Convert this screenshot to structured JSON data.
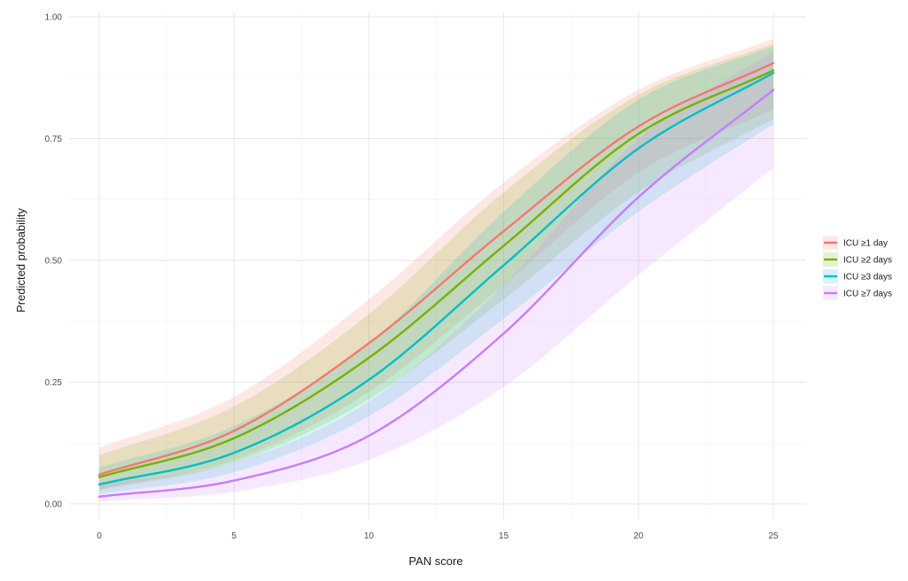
{
  "chart_data": {
    "type": "line",
    "xlabel": "PAN score",
    "ylabel": "Predicted probability",
    "xlim": [
      0,
      25
    ],
    "ylim": [
      0,
      1
    ],
    "x_ticks": [
      "0",
      "5",
      "10",
      "15",
      "20",
      "25"
    ],
    "y_ticks": [
      "0.00",
      "0.25",
      "0.50",
      "0.75",
      "1.00"
    ],
    "grid": true,
    "legend_position": "right",
    "x": [
      0,
      5,
      10,
      15,
      20,
      25
    ],
    "series": [
      {
        "name": "ICU ≥1 day",
        "color": "#F8766D",
        "values": [
          0.06,
          0.15,
          0.33,
          0.56,
          0.775,
          0.905
        ],
        "lower": [
          0.03,
          0.09,
          0.23,
          0.45,
          0.68,
          0.81
        ],
        "upper": [
          0.115,
          0.22,
          0.42,
          0.66,
          0.85,
          0.955
        ]
      },
      {
        "name": "ICU ≥2 days",
        "color": "#7CAE00",
        "values": [
          0.055,
          0.135,
          0.3,
          0.53,
          0.76,
          0.89
        ],
        "lower": [
          0.028,
          0.085,
          0.215,
          0.42,
          0.64,
          0.79
        ],
        "upper": [
          0.1,
          0.2,
          0.39,
          0.64,
          0.84,
          0.945
        ]
      },
      {
        "name": "ICU ≥3 days",
        "color": "#00BFC4",
        "values": [
          0.04,
          0.105,
          0.255,
          0.49,
          0.73,
          0.885
        ],
        "lower": [
          0.02,
          0.065,
          0.18,
          0.38,
          0.6,
          0.78
        ],
        "upper": [
          0.075,
          0.16,
          0.33,
          0.6,
          0.83,
          0.94
        ]
      },
      {
        "name": "ICU ≥7 days",
        "color": "#C77CFF",
        "values": [
          0.015,
          0.048,
          0.14,
          0.35,
          0.63,
          0.85
        ],
        "lower": [
          0.005,
          0.025,
          0.09,
          0.24,
          0.47,
          0.69
        ],
        "upper": [
          0.04,
          0.085,
          0.21,
          0.45,
          0.75,
          0.93
        ]
      }
    ]
  }
}
